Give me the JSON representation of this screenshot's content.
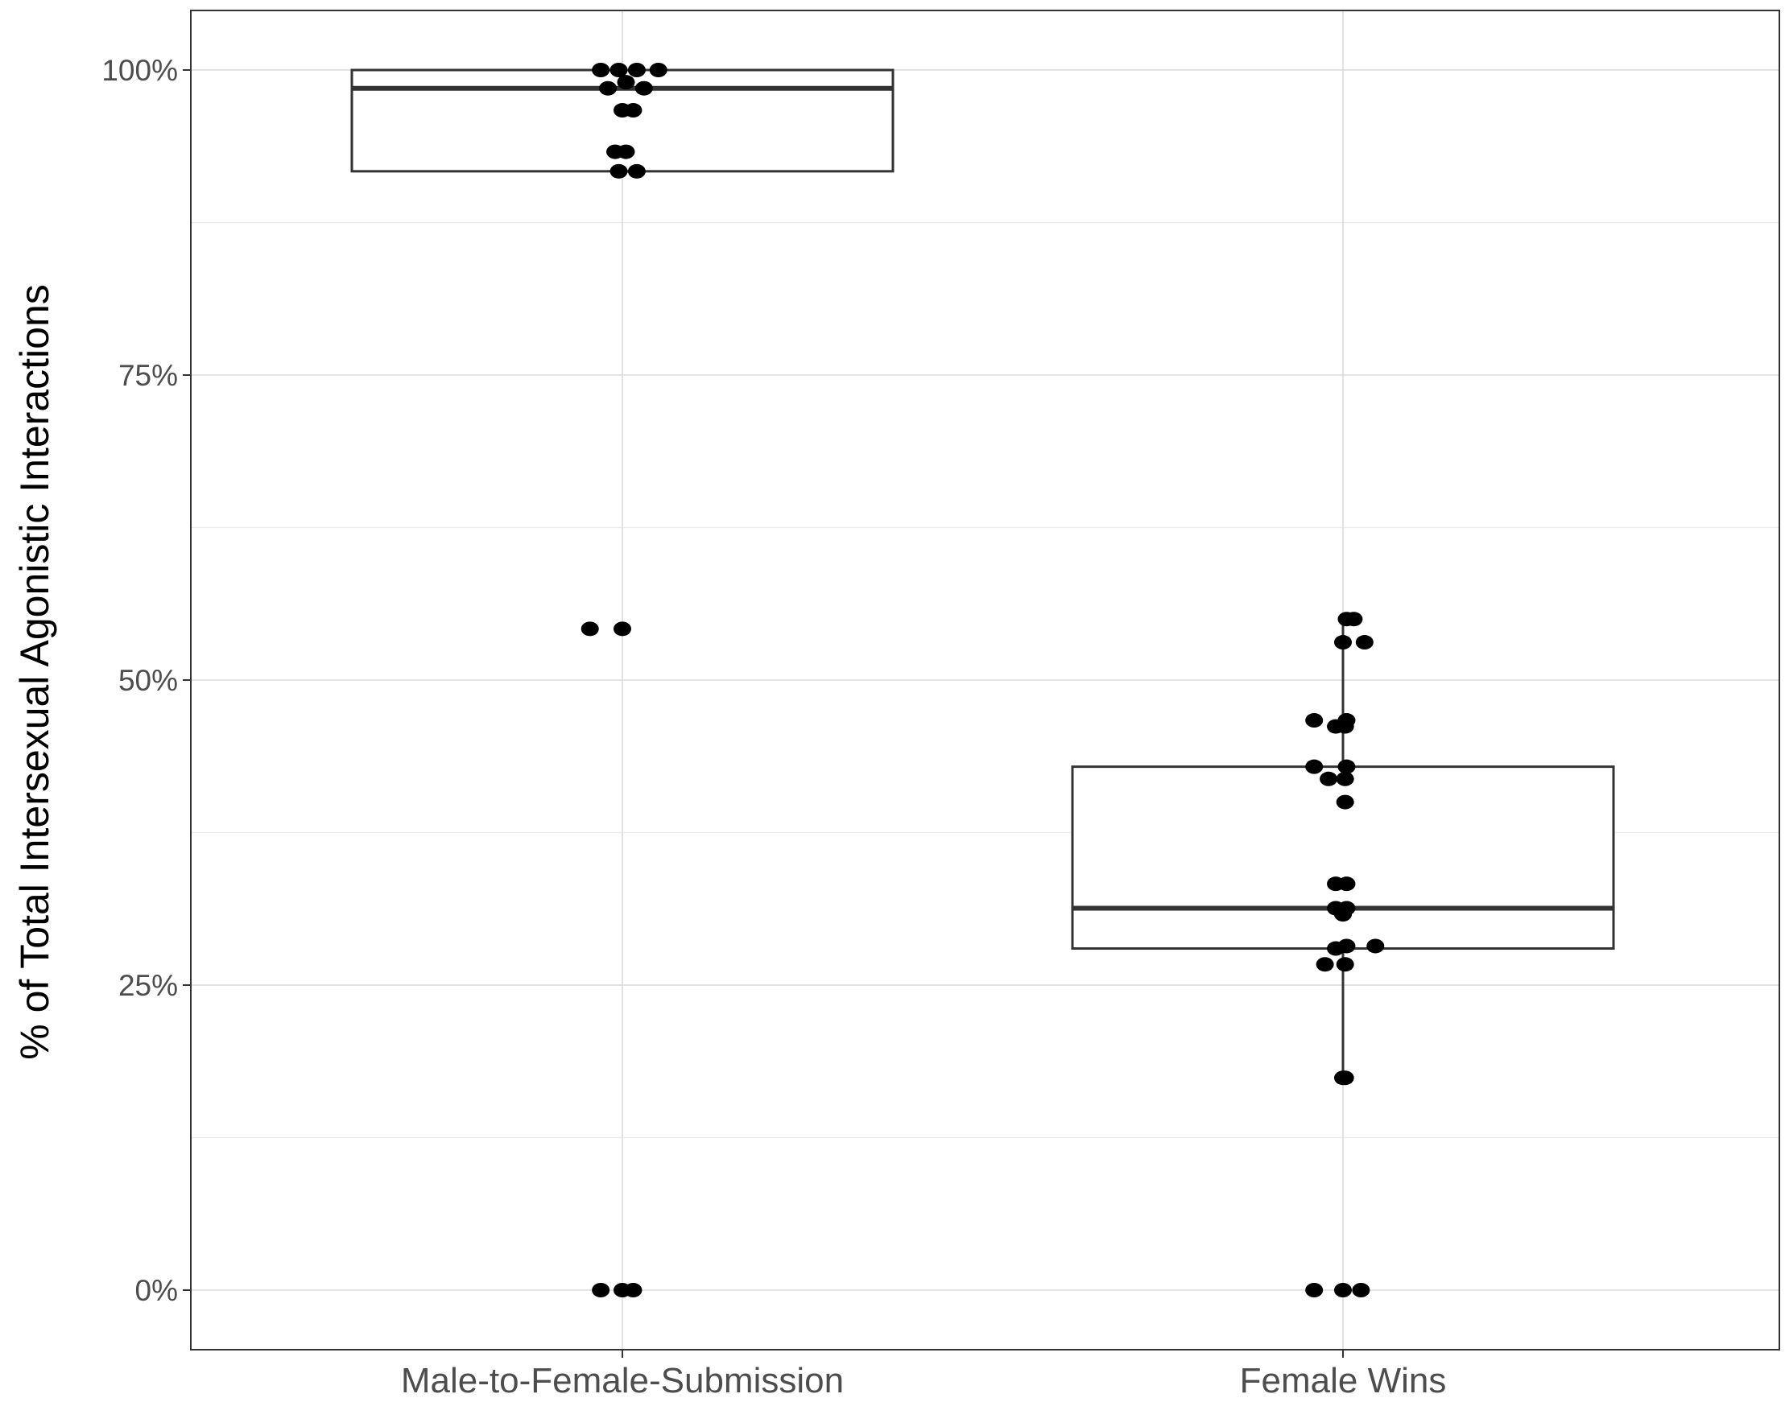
{
  "chart_data": {
    "type": "boxplot",
    "title": "",
    "xlabel": "",
    "ylabel": "% of Total Intersexual Agonistic Interactions",
    "ylim": [
      -0.05,
      1.045
    ],
    "yticks": [
      0,
      0.25,
      0.5,
      0.75,
      1.0
    ],
    "ytick_labels": [
      "0%",
      "25%",
      "50%",
      "75%",
      "100%"
    ],
    "grid": true,
    "legend": "none",
    "categories": [
      "Male-to-Female-Submission",
      "Female Wins"
    ],
    "boxes": [
      {
        "category": "Male-to-Female-Submission",
        "whisker_low": 0.917,
        "q1": 0.917,
        "median": 0.985,
        "q3": 1.0,
        "whisker_high": 1.0
      },
      {
        "category": "Female Wins",
        "whisker_low": 0.174,
        "q1": 0.28,
        "median": 0.313,
        "q3": 0.429,
        "whisker_high": 0.55
      }
    ],
    "points": [
      [
        {
          "x": -0.03,
          "y": 1.0
        },
        {
          "x": -0.005,
          "y": 1.0
        },
        {
          "x": 0.02,
          "y": 1.0
        },
        {
          "x": 0.05,
          "y": 1.0
        },
        {
          "x": -0.02,
          "y": 0.985
        },
        {
          "x": 0.005,
          "y": 0.99
        },
        {
          "x": 0.03,
          "y": 0.985
        },
        {
          "x": 0.0,
          "y": 0.967
        },
        {
          "x": 0.015,
          "y": 0.967
        },
        {
          "x": -0.01,
          "y": 0.933
        },
        {
          "x": 0.005,
          "y": 0.933
        },
        {
          "x": -0.005,
          "y": 0.917
        },
        {
          "x": 0.02,
          "y": 0.917
        },
        {
          "x": -0.045,
          "y": 0.542
        },
        {
          "x": 0.0,
          "y": 0.542
        },
        {
          "x": -0.03,
          "y": 0.0
        },
        {
          "x": 0.0,
          "y": 0.0
        },
        {
          "x": 0.015,
          "y": 0.0
        }
      ],
      [
        {
          "x": 0.005,
          "y": 0.55
        },
        {
          "x": 0.015,
          "y": 0.55
        },
        {
          "x": 0.0,
          "y": 0.531
        },
        {
          "x": 0.03,
          "y": 0.531
        },
        {
          "x": -0.04,
          "y": 0.467
        },
        {
          "x": -0.01,
          "y": 0.462
        },
        {
          "x": 0.003,
          "y": 0.462
        },
        {
          "x": 0.005,
          "y": 0.467
        },
        {
          "x": -0.04,
          "y": 0.429
        },
        {
          "x": 0.005,
          "y": 0.429
        },
        {
          "x": -0.02,
          "y": 0.419
        },
        {
          "x": 0.003,
          "y": 0.419
        },
        {
          "x": 0.003,
          "y": 0.4
        },
        {
          "x": -0.01,
          "y": 0.333
        },
        {
          "x": 0.005,
          "y": 0.333
        },
        {
          "x": -0.01,
          "y": 0.313
        },
        {
          "x": 0.0,
          "y": 0.308
        },
        {
          "x": 0.005,
          "y": 0.313
        },
        {
          "x": -0.01,
          "y": 0.28
        },
        {
          "x": 0.005,
          "y": 0.282
        },
        {
          "x": 0.045,
          "y": 0.282
        },
        {
          "x": -0.025,
          "y": 0.267
        },
        {
          "x": 0.003,
          "y": 0.267
        },
        {
          "x": 0.0,
          "y": 0.174
        },
        {
          "x": 0.003,
          "y": 0.174
        },
        {
          "x": -0.04,
          "y": 0.0
        },
        {
          "x": 0.0,
          "y": 0.0
        },
        {
          "x": 0.025,
          "y": 0.0
        }
      ]
    ]
  }
}
